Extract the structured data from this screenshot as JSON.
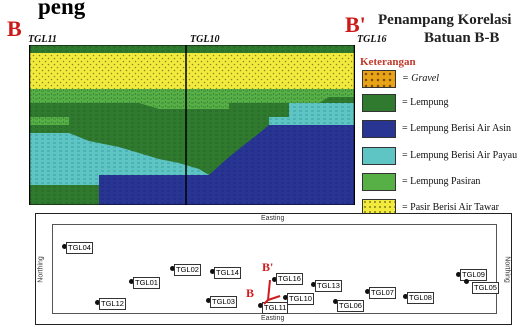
{
  "header": {
    "top_title": "peng",
    "section_start": "B",
    "section_end": "B'",
    "title_line1": "Penampang Korelasi",
    "title_line2": "Batuan B-B"
  },
  "wells": {
    "left": "TGL11",
    "middle": "TGL10",
    "right": "TGL16"
  },
  "legend": {
    "title": "Keterangan",
    "items": [
      {
        "label": "= Gravel",
        "italic": true,
        "color": "#e8a317",
        "pattern": "gravel"
      },
      {
        "label": "= Lempung",
        "color": "#2f7a2f",
        "pattern": "lempung"
      },
      {
        "label": "= Lempung Berisi Air Asin",
        "color": "#283593",
        "pattern": "asin"
      },
      {
        "label": "= Lempung Berisi Air Payau",
        "color": "#5ec4c4",
        "pattern": "payau"
      },
      {
        "label": "= Lempung Pasiran",
        "color": "#57b046",
        "pattern": "pasiran"
      },
      {
        "label": "= Pasir Berisi Air Tawar",
        "color": "#f2ea3c",
        "pattern": "tawar"
      }
    ]
  },
  "map": {
    "easting_label_top": "Easting",
    "easting_label_bottom": "Easting",
    "northing_label_left": "Northing",
    "northing_label_right": "Northing",
    "marker_start": "B",
    "marker_end": "B'",
    "wells": [
      "TGL04",
      "TGL01",
      "TGL02",
      "TGL14",
      "TGL16",
      "TGL13",
      "TGL12",
      "TGL03",
      "TGL11",
      "TGL10",
      "TGL09",
      "TGL07",
      "TGL08",
      "TGL06",
      "TGL05"
    ]
  }
}
